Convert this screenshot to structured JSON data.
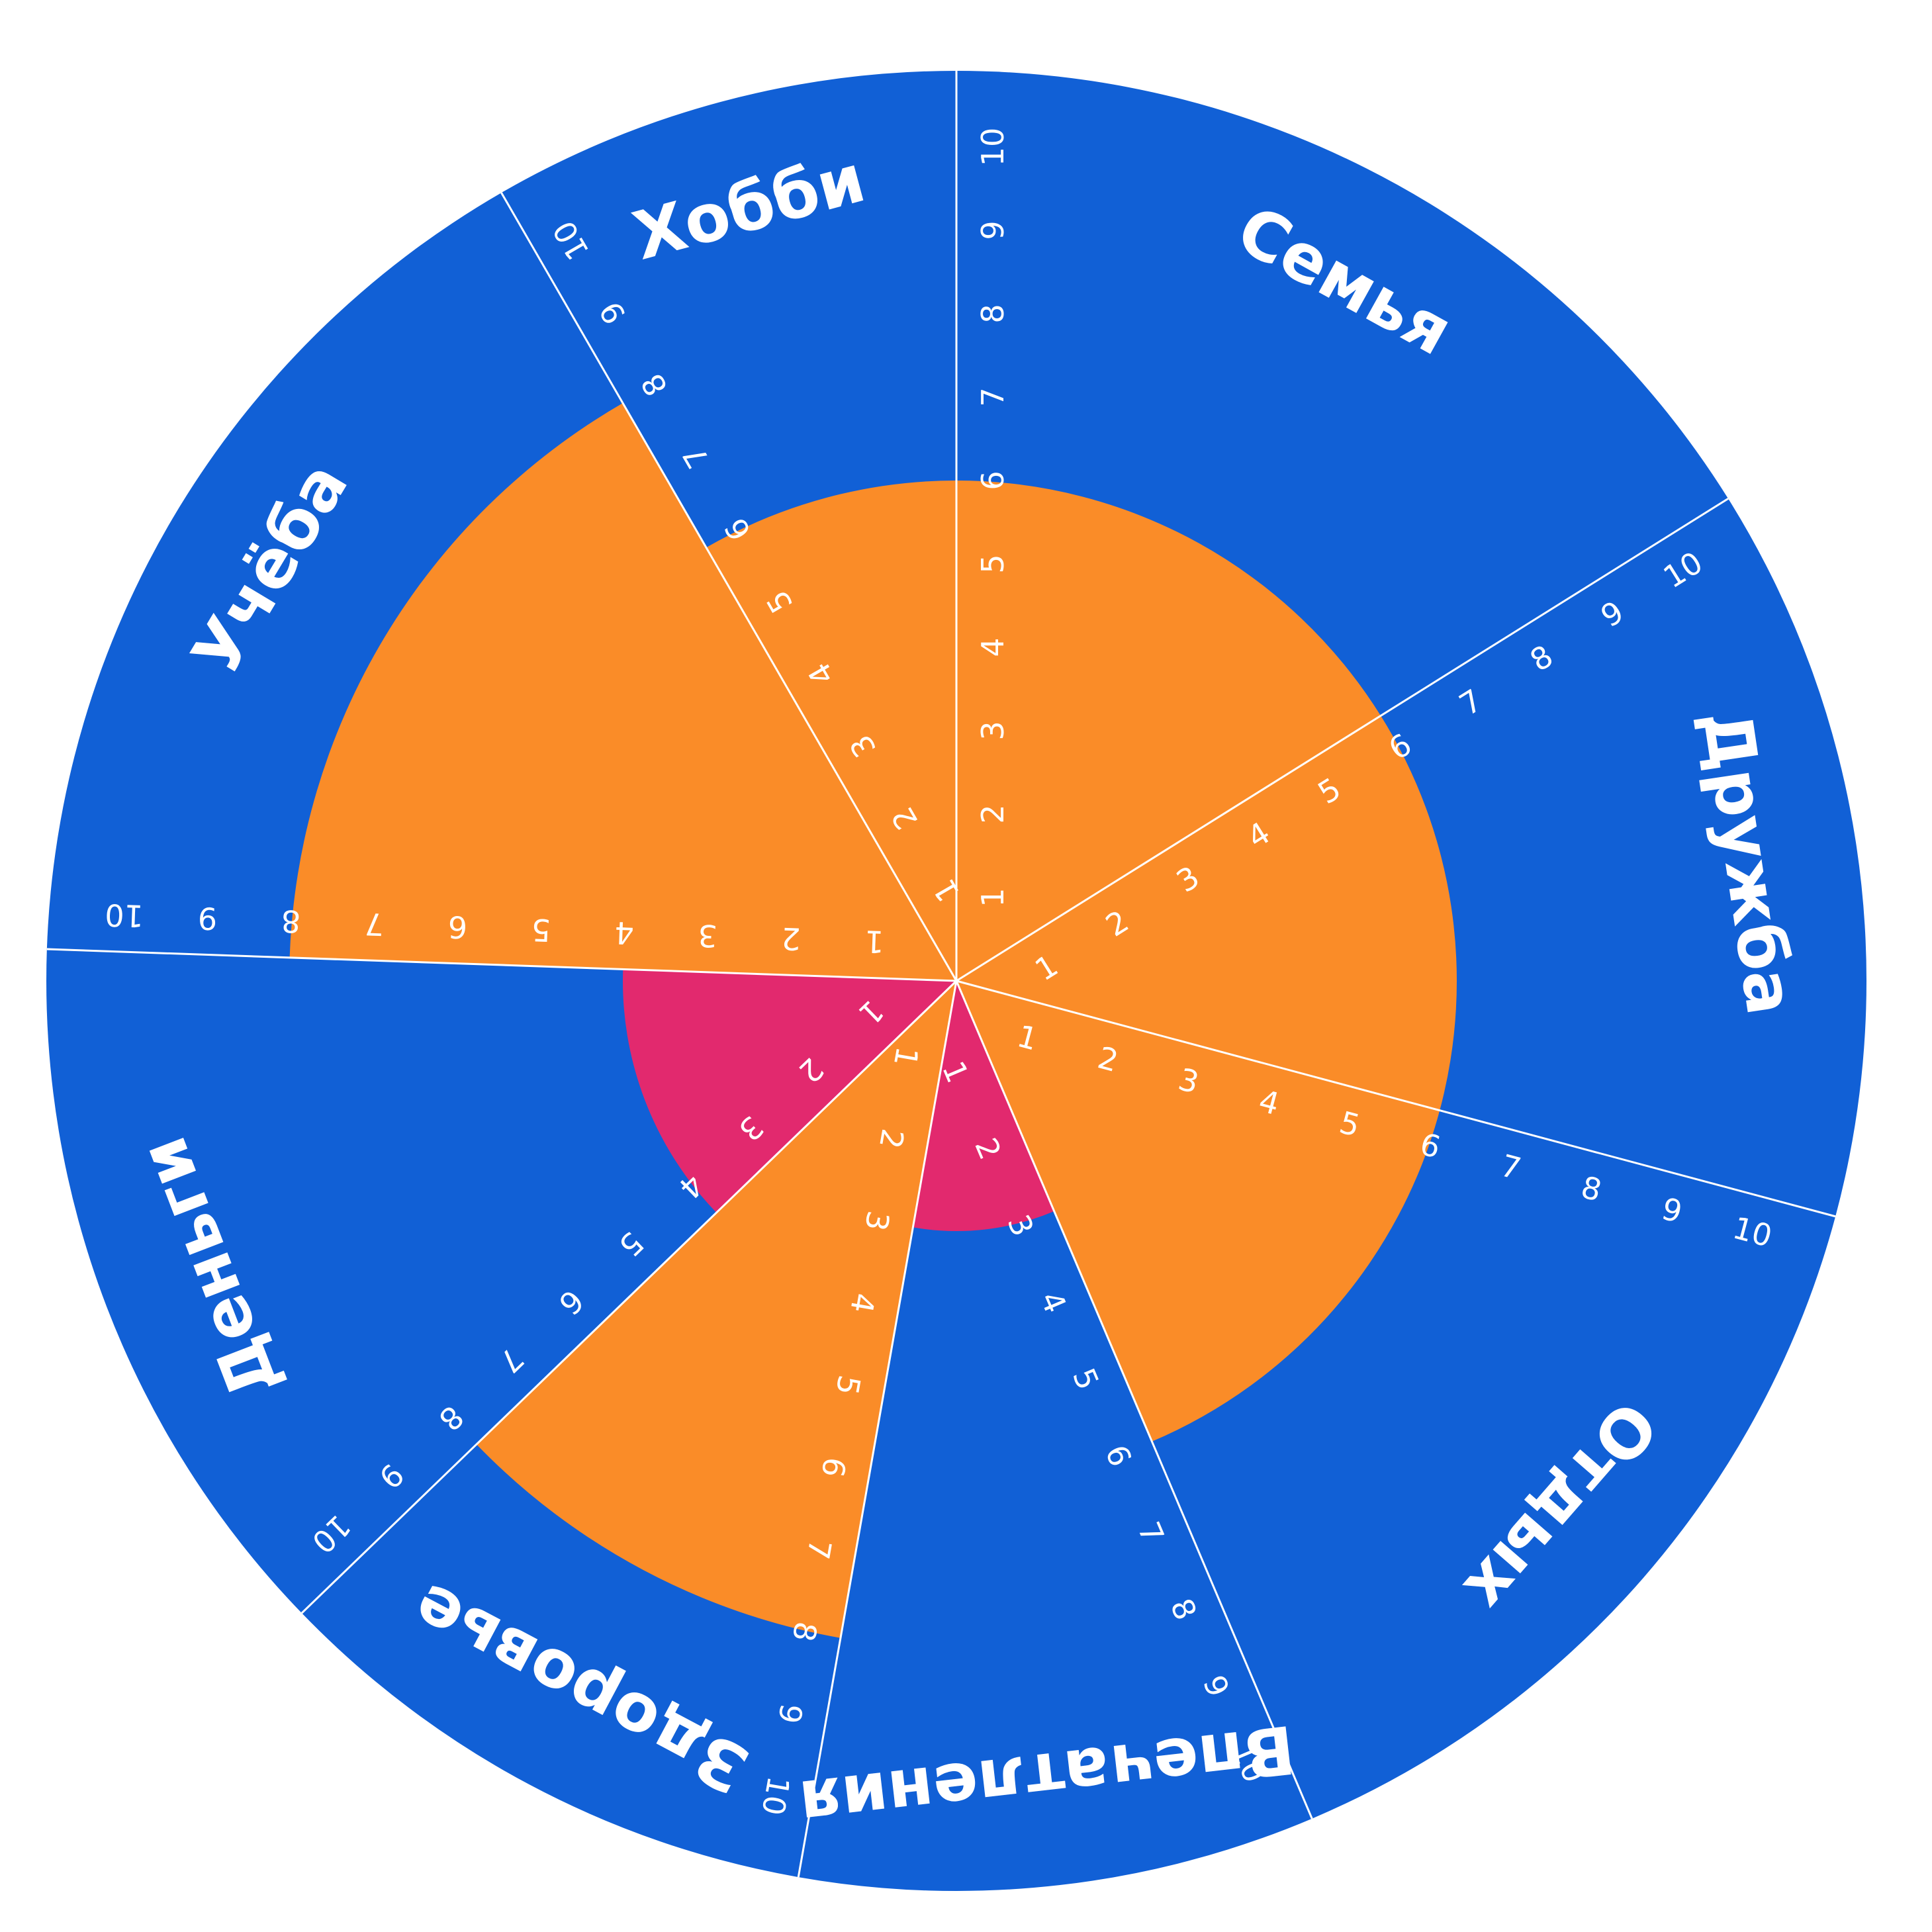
{
  "chart_data": {
    "type": "polar-area",
    "max_value": 10,
    "ticks": [
      1,
      2,
      3,
      4,
      5,
      6,
      7,
      8,
      9,
      10
    ],
    "categories": [
      "Семья",
      "Дружба",
      "Отдых",
      "Впечатления",
      "Здоровье",
      "Деньги",
      "Учёба",
      "Хобби"
    ],
    "values": [
      6,
      6,
      6,
      3,
      8,
      4,
      8,
      6
    ],
    "start_angle_deg": 0,
    "sweep_deg": [
      58,
      47,
      52,
      33,
      36,
      46,
      58,
      30
    ],
    "colors": {
      "background": "#1160d6",
      "value_high": "#fa8c28",
      "value_low": "#e2296e",
      "separator": "#ffffff"
    },
    "low_threshold": 4
  }
}
